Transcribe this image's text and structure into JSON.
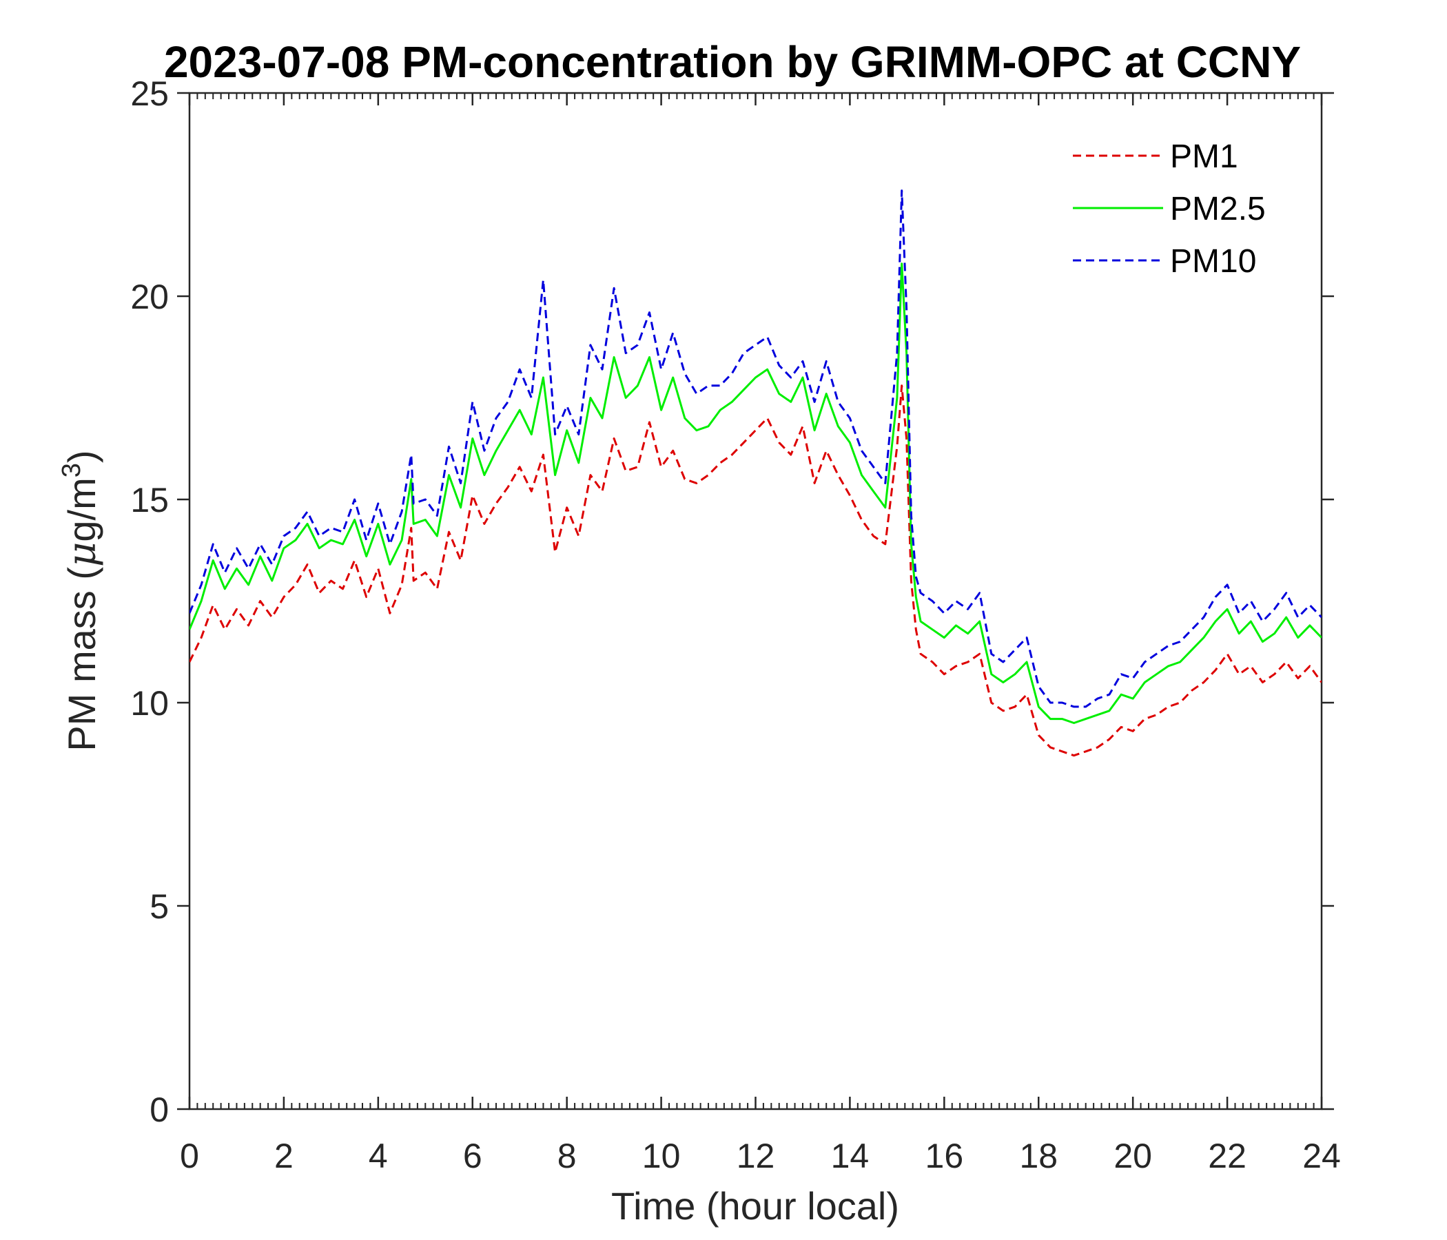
{
  "chart_data": {
    "type": "line",
    "title": "2023-07-08 PM-concentration by GRIMM-OPC at CCNY",
    "xlabel": "Time (hour local)",
    "ylabel_prefix": "PM mass (",
    "ylabel_mu": "μ",
    "ylabel_unit": "g/m",
    "ylabel_sup": "3",
    "ylabel_suffix": ")",
    "xlim": [
      0,
      24
    ],
    "ylim": [
      0,
      25
    ],
    "xticks": [
      0,
      2,
      4,
      6,
      8,
      10,
      12,
      14,
      16,
      18,
      20,
      22,
      24
    ],
    "yticks": [
      0,
      5,
      10,
      15,
      20,
      25
    ],
    "legend_position": "top-right",
    "series": [
      {
        "name": "PM1",
        "color": "#dd0000",
        "style": "dashed",
        "x": [
          0,
          0.25,
          0.5,
          0.75,
          1.0,
          1.25,
          1.5,
          1.75,
          2.0,
          2.25,
          2.5,
          2.75,
          3.0,
          3.25,
          3.5,
          3.75,
          4.0,
          4.25,
          4.5,
          4.7,
          4.75,
          5.0,
          5.25,
          5.5,
          5.75,
          6.0,
          6.25,
          6.5,
          6.75,
          7.0,
          7.25,
          7.5,
          7.75,
          8.0,
          8.25,
          8.5,
          8.75,
          9.0,
          9.25,
          9.5,
          9.75,
          10.0,
          10.25,
          10.5,
          10.75,
          11.0,
          11.25,
          11.5,
          11.75,
          12.0,
          12.25,
          12.5,
          12.75,
          13.0,
          13.25,
          13.5,
          13.75,
          14.0,
          14.25,
          14.5,
          14.75,
          15.0,
          15.1,
          15.2,
          15.3,
          15.4,
          15.5,
          15.75,
          16.0,
          16.25,
          16.5,
          16.75,
          17.0,
          17.25,
          17.5,
          17.75,
          18.0,
          18.25,
          18.5,
          18.75,
          19.0,
          19.25,
          19.5,
          19.75,
          20.0,
          20.25,
          20.5,
          20.75,
          21.0,
          21.25,
          21.5,
          21.75,
          22.0,
          22.25,
          22.5,
          22.75,
          23.0,
          23.25,
          23.5,
          23.75,
          24.0
        ],
        "values": [
          11.0,
          11.6,
          12.4,
          11.8,
          12.3,
          11.9,
          12.5,
          12.1,
          12.6,
          12.9,
          13.4,
          12.7,
          13.0,
          12.8,
          13.5,
          12.6,
          13.3,
          12.2,
          12.9,
          14.3,
          13.0,
          13.2,
          12.8,
          14.2,
          13.5,
          15.1,
          14.4,
          14.9,
          15.3,
          15.8,
          15.2,
          16.1,
          13.7,
          14.8,
          14.1,
          15.6,
          15.2,
          16.5,
          15.7,
          15.8,
          16.9,
          15.8,
          16.2,
          15.5,
          15.4,
          15.6,
          15.9,
          16.1,
          16.4,
          16.7,
          17.0,
          16.4,
          16.1,
          16.8,
          15.4,
          16.2,
          15.6,
          15.1,
          14.5,
          14.1,
          13.9,
          16.3,
          17.8,
          16.5,
          13.0,
          11.8,
          11.2,
          11.0,
          10.7,
          10.9,
          11.0,
          11.2,
          10.0,
          9.8,
          9.9,
          10.2,
          9.2,
          8.9,
          8.8,
          8.7,
          8.8,
          8.9,
          9.1,
          9.4,
          9.3,
          9.6,
          9.7,
          9.9,
          10.0,
          10.3,
          10.5,
          10.8,
          11.2,
          10.7,
          10.9,
          10.5,
          10.7,
          11.0,
          10.6,
          10.9,
          10.5
        ],
        "series_x_note": "hour"
      },
      {
        "name": "PM2.5",
        "color": "#00ee00",
        "style": "solid",
        "x": [
          0,
          0.25,
          0.5,
          0.75,
          1.0,
          1.25,
          1.5,
          1.75,
          2.0,
          2.25,
          2.5,
          2.75,
          3.0,
          3.25,
          3.5,
          3.75,
          4.0,
          4.25,
          4.5,
          4.7,
          4.75,
          5.0,
          5.25,
          5.5,
          5.75,
          6.0,
          6.25,
          6.5,
          6.75,
          7.0,
          7.25,
          7.5,
          7.75,
          8.0,
          8.25,
          8.5,
          8.75,
          9.0,
          9.25,
          9.5,
          9.75,
          10.0,
          10.25,
          10.5,
          10.75,
          11.0,
          11.25,
          11.5,
          11.75,
          12.0,
          12.25,
          12.5,
          12.75,
          13.0,
          13.25,
          13.5,
          13.75,
          14.0,
          14.25,
          14.5,
          14.75,
          15.0,
          15.1,
          15.2,
          15.3,
          15.4,
          15.5,
          15.75,
          16.0,
          16.25,
          16.5,
          16.75,
          17.0,
          17.25,
          17.5,
          17.75,
          18.0,
          18.25,
          18.5,
          18.75,
          19.0,
          19.25,
          19.5,
          19.75,
          20.0,
          20.25,
          20.5,
          20.75,
          21.0,
          21.25,
          21.5,
          21.75,
          22.0,
          22.25,
          22.5,
          22.75,
          23.0,
          23.25,
          23.5,
          23.75,
          24.0
        ],
        "values": [
          11.8,
          12.5,
          13.5,
          12.8,
          13.3,
          12.9,
          13.6,
          13.0,
          13.8,
          14.0,
          14.4,
          13.8,
          14.0,
          13.9,
          14.5,
          13.6,
          14.4,
          13.4,
          14.0,
          15.5,
          14.4,
          14.5,
          14.1,
          15.6,
          14.8,
          16.5,
          15.6,
          16.2,
          16.7,
          17.2,
          16.6,
          18.0,
          15.6,
          16.7,
          15.9,
          17.5,
          17.0,
          18.5,
          17.5,
          17.8,
          18.5,
          17.2,
          18.0,
          17.0,
          16.7,
          16.8,
          17.2,
          17.4,
          17.7,
          18.0,
          18.2,
          17.6,
          17.4,
          18.0,
          16.7,
          17.6,
          16.8,
          16.4,
          15.6,
          15.2,
          14.8,
          17.5,
          20.8,
          18.6,
          13.9,
          12.6,
          12.0,
          11.8,
          11.6,
          11.9,
          11.7,
          12.0,
          10.7,
          10.5,
          10.7,
          11.0,
          9.9,
          9.6,
          9.6,
          9.5,
          9.6,
          9.7,
          9.8,
          10.2,
          10.1,
          10.5,
          10.7,
          10.9,
          11.0,
          11.3,
          11.6,
          12.0,
          12.3,
          11.7,
          12.0,
          11.5,
          11.7,
          12.1,
          11.6,
          11.9,
          11.6
        ]
      },
      {
        "name": "PM10",
        "color": "#0000dd",
        "style": "dashed",
        "x": [
          0,
          0.25,
          0.5,
          0.75,
          1.0,
          1.25,
          1.5,
          1.75,
          2.0,
          2.25,
          2.5,
          2.75,
          3.0,
          3.25,
          3.5,
          3.75,
          4.0,
          4.25,
          4.5,
          4.7,
          4.75,
          5.0,
          5.25,
          5.5,
          5.75,
          6.0,
          6.25,
          6.5,
          6.75,
          7.0,
          7.25,
          7.5,
          7.75,
          8.0,
          8.25,
          8.5,
          8.75,
          9.0,
          9.25,
          9.5,
          9.75,
          10.0,
          10.25,
          10.5,
          10.75,
          11.0,
          11.25,
          11.5,
          11.75,
          12.0,
          12.25,
          12.5,
          12.75,
          13.0,
          13.25,
          13.5,
          13.75,
          14.0,
          14.25,
          14.5,
          14.75,
          15.0,
          15.1,
          15.2,
          15.3,
          15.4,
          15.5,
          15.75,
          16.0,
          16.25,
          16.5,
          16.75,
          17.0,
          17.25,
          17.5,
          17.75,
          18.0,
          18.25,
          18.5,
          18.75,
          19.0,
          19.25,
          19.5,
          19.75,
          20.0,
          20.25,
          20.5,
          20.75,
          21.0,
          21.25,
          21.5,
          21.75,
          22.0,
          22.25,
          22.5,
          22.75,
          23.0,
          23.25,
          23.5,
          23.75,
          24.0
        ],
        "values": [
          12.2,
          12.9,
          13.9,
          13.2,
          13.8,
          13.3,
          13.9,
          13.4,
          14.1,
          14.3,
          14.7,
          14.1,
          14.3,
          14.2,
          15.0,
          14.0,
          14.9,
          13.9,
          14.7,
          16.1,
          14.9,
          15.0,
          14.6,
          16.3,
          15.4,
          17.4,
          16.2,
          17.0,
          17.4,
          18.2,
          17.5,
          20.4,
          16.6,
          17.3,
          16.6,
          18.8,
          18.2,
          20.2,
          18.6,
          18.8,
          19.6,
          18.2,
          19.1,
          18.1,
          17.6,
          17.8,
          17.8,
          18.1,
          18.6,
          18.8,
          19.0,
          18.3,
          18.0,
          18.4,
          17.4,
          18.4,
          17.4,
          17.0,
          16.2,
          15.8,
          15.4,
          18.6,
          22.6,
          19.7,
          14.6,
          13.1,
          12.7,
          12.5,
          12.2,
          12.5,
          12.3,
          12.7,
          11.2,
          11.0,
          11.3,
          11.6,
          10.4,
          10.0,
          10.0,
          9.9,
          9.9,
          10.1,
          10.2,
          10.7,
          10.6,
          11.0,
          11.2,
          11.4,
          11.5,
          11.8,
          12.1,
          12.6,
          12.9,
          12.2,
          12.5,
          12.0,
          12.3,
          12.7,
          12.1,
          12.4,
          12.1
        ]
      }
    ]
  }
}
